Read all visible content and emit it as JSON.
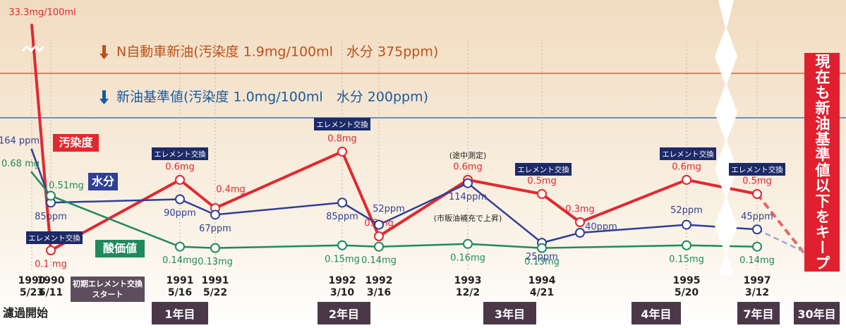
{
  "chart_data": {
    "type": "line",
    "categories": [
      "1990\n5/23",
      "1990\n6/11",
      "1991\n5/16",
      "1991\n5/22",
      "1992\n3/10",
      "1992\n3/16",
      "1993\n12/2",
      "1994\n4/21",
      null,
      "1995\n5/20",
      "1997\n3/12"
    ],
    "series": [
      {
        "name": "汚染度",
        "color": "#e2282f",
        "values": [
          33.3,
          0.1,
          0.6,
          0.4,
          0.8,
          0.2,
          0.6,
          0.5,
          0.3,
          0.6,
          0.5
        ],
        "value_labels": [
          "33.3mg/100ml",
          "0.1 mg",
          "0.6mg",
          "0.4mg",
          "0.8mg",
          "0.2mg",
          "0.6mg",
          "0.5mg",
          "0.3mg",
          "0.6mg",
          "0.5mg"
        ]
      },
      {
        "name": "水分",
        "color": "#2f3f96",
        "values": [
          164,
          85,
          90,
          67,
          85,
          52,
          114,
          25,
          40,
          52,
          45
        ],
        "value_labels": [
          "164 ppm",
          "85ppm",
          "90ppm",
          "67ppm",
          "85ppm",
          "52ppm",
          "114ppm",
          "25ppm",
          "40ppm",
          "52ppm",
          "45ppm"
        ]
      },
      {
        "name": "酸価値",
        "color": "#1f8a5c",
        "values": [
          0.68,
          0.51,
          0.14,
          0.13,
          0.15,
          0.14,
          0.16,
          0.13,
          null,
          0.15,
          0.14
        ],
        "value_labels": [
          "0.68 mg",
          "0.51mg",
          "0.14mg",
          "0.13mg",
          "0.15mg",
          "0.14mg",
          "0.16mg",
          "0.13mg",
          null,
          "0.15mg",
          "0.14mg"
        ]
      }
    ],
    "reference_lines": [
      {
        "text": "N自動車新油(汚染度 1.9mg/100ml　水分 375ppm)",
        "color": "#c0501a"
      },
      {
        "text": "新油基準値(汚染度 1.0mg/100ml　水分 200ppm)",
        "color": "#1a5aa0"
      }
    ],
    "element_exchange": [
      "エレメント交換",
      "エレメント交換",
      "エレメント交換",
      "エレメント交換",
      "エレメント交換",
      "エレメント交換"
    ],
    "annotations": [
      "(途中測定)",
      "(市販油補充で上昇)"
    ],
    "start_label": "濾過開始",
    "initial_box": "初期エレメント交換\nスタート",
    "periods": [
      "1年目",
      "2年目",
      "3年目",
      "4年目",
      "7年目",
      "30年目"
    ],
    "banner": "現在も新油基準値以下をキープ",
    "y_break": true,
    "x_break": true
  }
}
